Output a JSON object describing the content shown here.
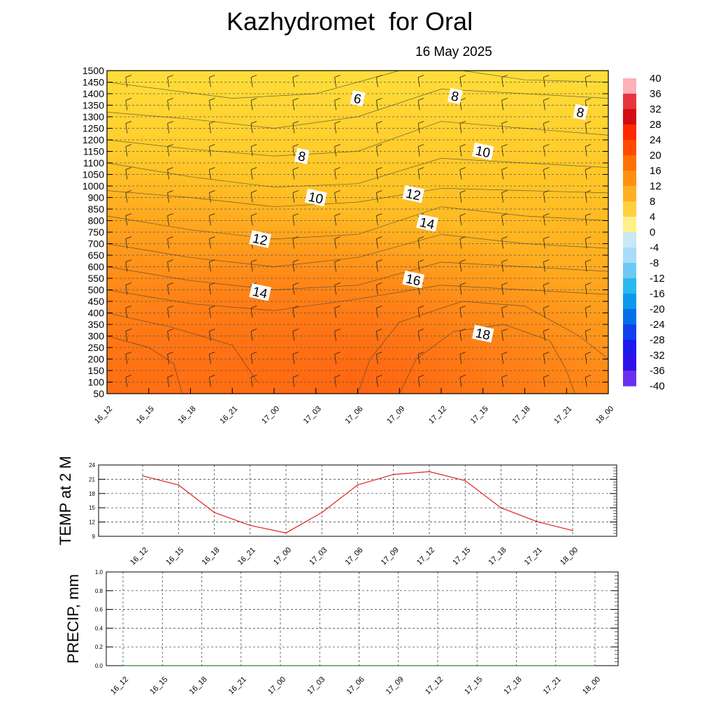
{
  "title": "Kazhydromet  for Oral",
  "date": "16 May 2025",
  "time_labels": [
    "16_12",
    "16_15",
    "16_18",
    "16_21",
    "17_00",
    "17_03",
    "17_06",
    "17_09",
    "17_12",
    "17_15",
    "17_18",
    "17_21",
    "18_00"
  ],
  "chart_data": [
    {
      "type": "heatmap",
      "name": "vertical-section",
      "y_ticks": [
        50,
        100,
        150,
        200,
        250,
        300,
        350,
        400,
        450,
        500,
        550,
        600,
        650,
        700,
        750,
        800,
        850,
        900,
        1000,
        1050,
        1100,
        1150,
        1200,
        1250,
        1300,
        1350,
        1400,
        1450,
        1500
      ],
      "contour_labels": [
        {
          "value": "6",
          "time": "17_06",
          "level": 1380
        },
        {
          "value": "8",
          "time": "17_13",
          "level": 1390
        },
        {
          "value": "8",
          "time": "17_22",
          "level": 1320
        },
        {
          "value": "8",
          "time": "17_02",
          "level": 1130
        },
        {
          "value": "10",
          "time": "17_15",
          "level": 1150
        },
        {
          "value": "10",
          "time": "17_03",
          "level": 900
        },
        {
          "value": "12",
          "time": "17_10",
          "level": 930
        },
        {
          "value": "14",
          "time": "17_11",
          "level": 790
        },
        {
          "value": "12",
          "time": "16_23",
          "level": 720
        },
        {
          "value": "16",
          "time": "17_10",
          "level": 545
        },
        {
          "value": "14",
          "time": "16_23",
          "level": 490
        },
        {
          "value": "18",
          "time": "17_15",
          "level": 310
        }
      ],
      "colorbar_labels": [
        "40",
        "36",
        "32",
        "28",
        "24",
        "20",
        "16",
        "12",
        "8",
        "4",
        "0",
        "-4",
        "-8",
        "-12",
        "-16",
        "-20",
        "-24",
        "-28",
        "-32",
        "-36",
        "-40"
      ]
    },
    {
      "type": "line",
      "name": "temp-2m",
      "ylabel": "TEMP at 2 M",
      "ylim": [
        9,
        24
      ],
      "y_ticks": [
        9,
        12,
        15,
        18,
        21,
        24
      ],
      "categories": [
        "16_12",
        "16_15",
        "16_18",
        "16_21",
        "17_00",
        "17_03",
        "17_06",
        "17_09",
        "17_12",
        "17_15",
        "17_18",
        "17_21",
        "18_00"
      ],
      "series": [
        {
          "values": [
            21.7,
            19.8,
            14.0,
            11.3,
            9.7,
            14.0,
            19.8,
            22.0,
            22.6,
            20.7,
            15.0,
            12.1,
            10.2
          ],
          "color": "#e32020"
        }
      ]
    },
    {
      "type": "line",
      "name": "precip",
      "ylabel": "PRECIP, mm",
      "ylim": [
        0.0,
        1.0
      ],
      "y_ticks": [
        "0.0",
        "0.2",
        "0.4",
        "0.6",
        "0.8",
        "1.0"
      ],
      "categories": [
        "16_12",
        "16_15",
        "16_18",
        "16_21",
        "17_00",
        "17_03",
        "17_06",
        "17_09",
        "17_12",
        "17_15",
        "17_18",
        "17_21",
        "18_00"
      ],
      "series": [
        {
          "values": [
            0,
            0,
            0,
            0,
            0,
            0,
            0,
            0,
            0,
            0,
            0,
            0,
            0
          ],
          "color": "#228b22"
        }
      ]
    }
  ]
}
